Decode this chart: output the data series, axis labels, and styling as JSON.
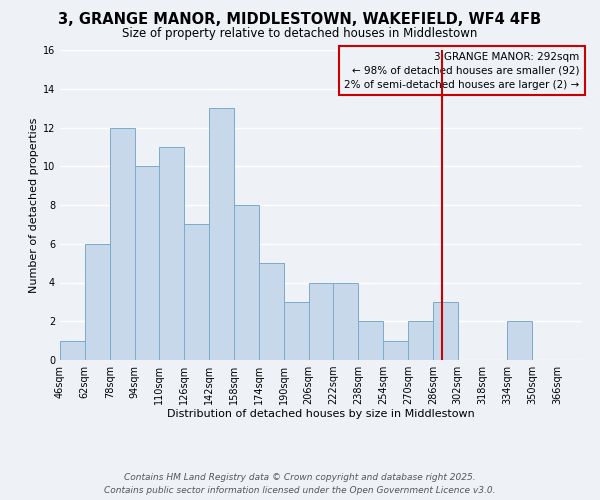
{
  "title": "3, GRANGE MANOR, MIDDLESTOWN, WAKEFIELD, WF4 4FB",
  "subtitle": "Size of property relative to detached houses in Middlestown",
  "xlabel": "Distribution of detached houses by size in Middlestown",
  "ylabel": "Number of detached properties",
  "bar_counts": [
    1,
    6,
    12,
    10,
    11,
    7,
    13,
    8,
    5,
    3,
    4,
    4,
    2,
    1,
    2,
    3,
    0,
    0,
    2,
    0
  ],
  "bin_labels": [
    "46sqm",
    "62sqm",
    "78sqm",
    "94sqm",
    "110sqm",
    "126sqm",
    "142sqm",
    "158sqm",
    "174sqm",
    "190sqm",
    "206sqm",
    "222sqm",
    "238sqm",
    "254sqm",
    "270sqm",
    "286sqm",
    "302sqm",
    "318sqm",
    "334sqm",
    "350sqm",
    "366sqm"
  ],
  "bin_left_edges": [
    46,
    62,
    78,
    94,
    110,
    126,
    142,
    158,
    174,
    190,
    206,
    222,
    238,
    254,
    270,
    286,
    302,
    318,
    334,
    350
  ],
  "bin_width": 16,
  "bar_color": "#c8d8eb",
  "bar_edge_color": "#7aaacb",
  "vline_x": 292,
  "vline_color": "#cc0000",
  "ylim": [
    0,
    16
  ],
  "yticks": [
    0,
    2,
    4,
    6,
    8,
    10,
    12,
    14,
    16
  ],
  "annotation_title": "3 GRANGE MANOR: 292sqm",
  "annotation_line1": "← 98% of detached houses are smaller (92)",
  "annotation_line2": "2% of semi-detached houses are larger (2) →",
  "annotation_box_color": "#cc0000",
  "footer1": "Contains HM Land Registry data © Crown copyright and database right 2025.",
  "footer2": "Contains public sector information licensed under the Open Government Licence v3.0.",
  "bg_color": "#eef2f7",
  "grid_color": "#ffffff",
  "title_fontsize": 10.5,
  "subtitle_fontsize": 8.5,
  "axis_label_fontsize": 8,
  "tick_fontsize": 7,
  "annotation_fontsize": 7.5,
  "footer_fontsize": 6.5
}
